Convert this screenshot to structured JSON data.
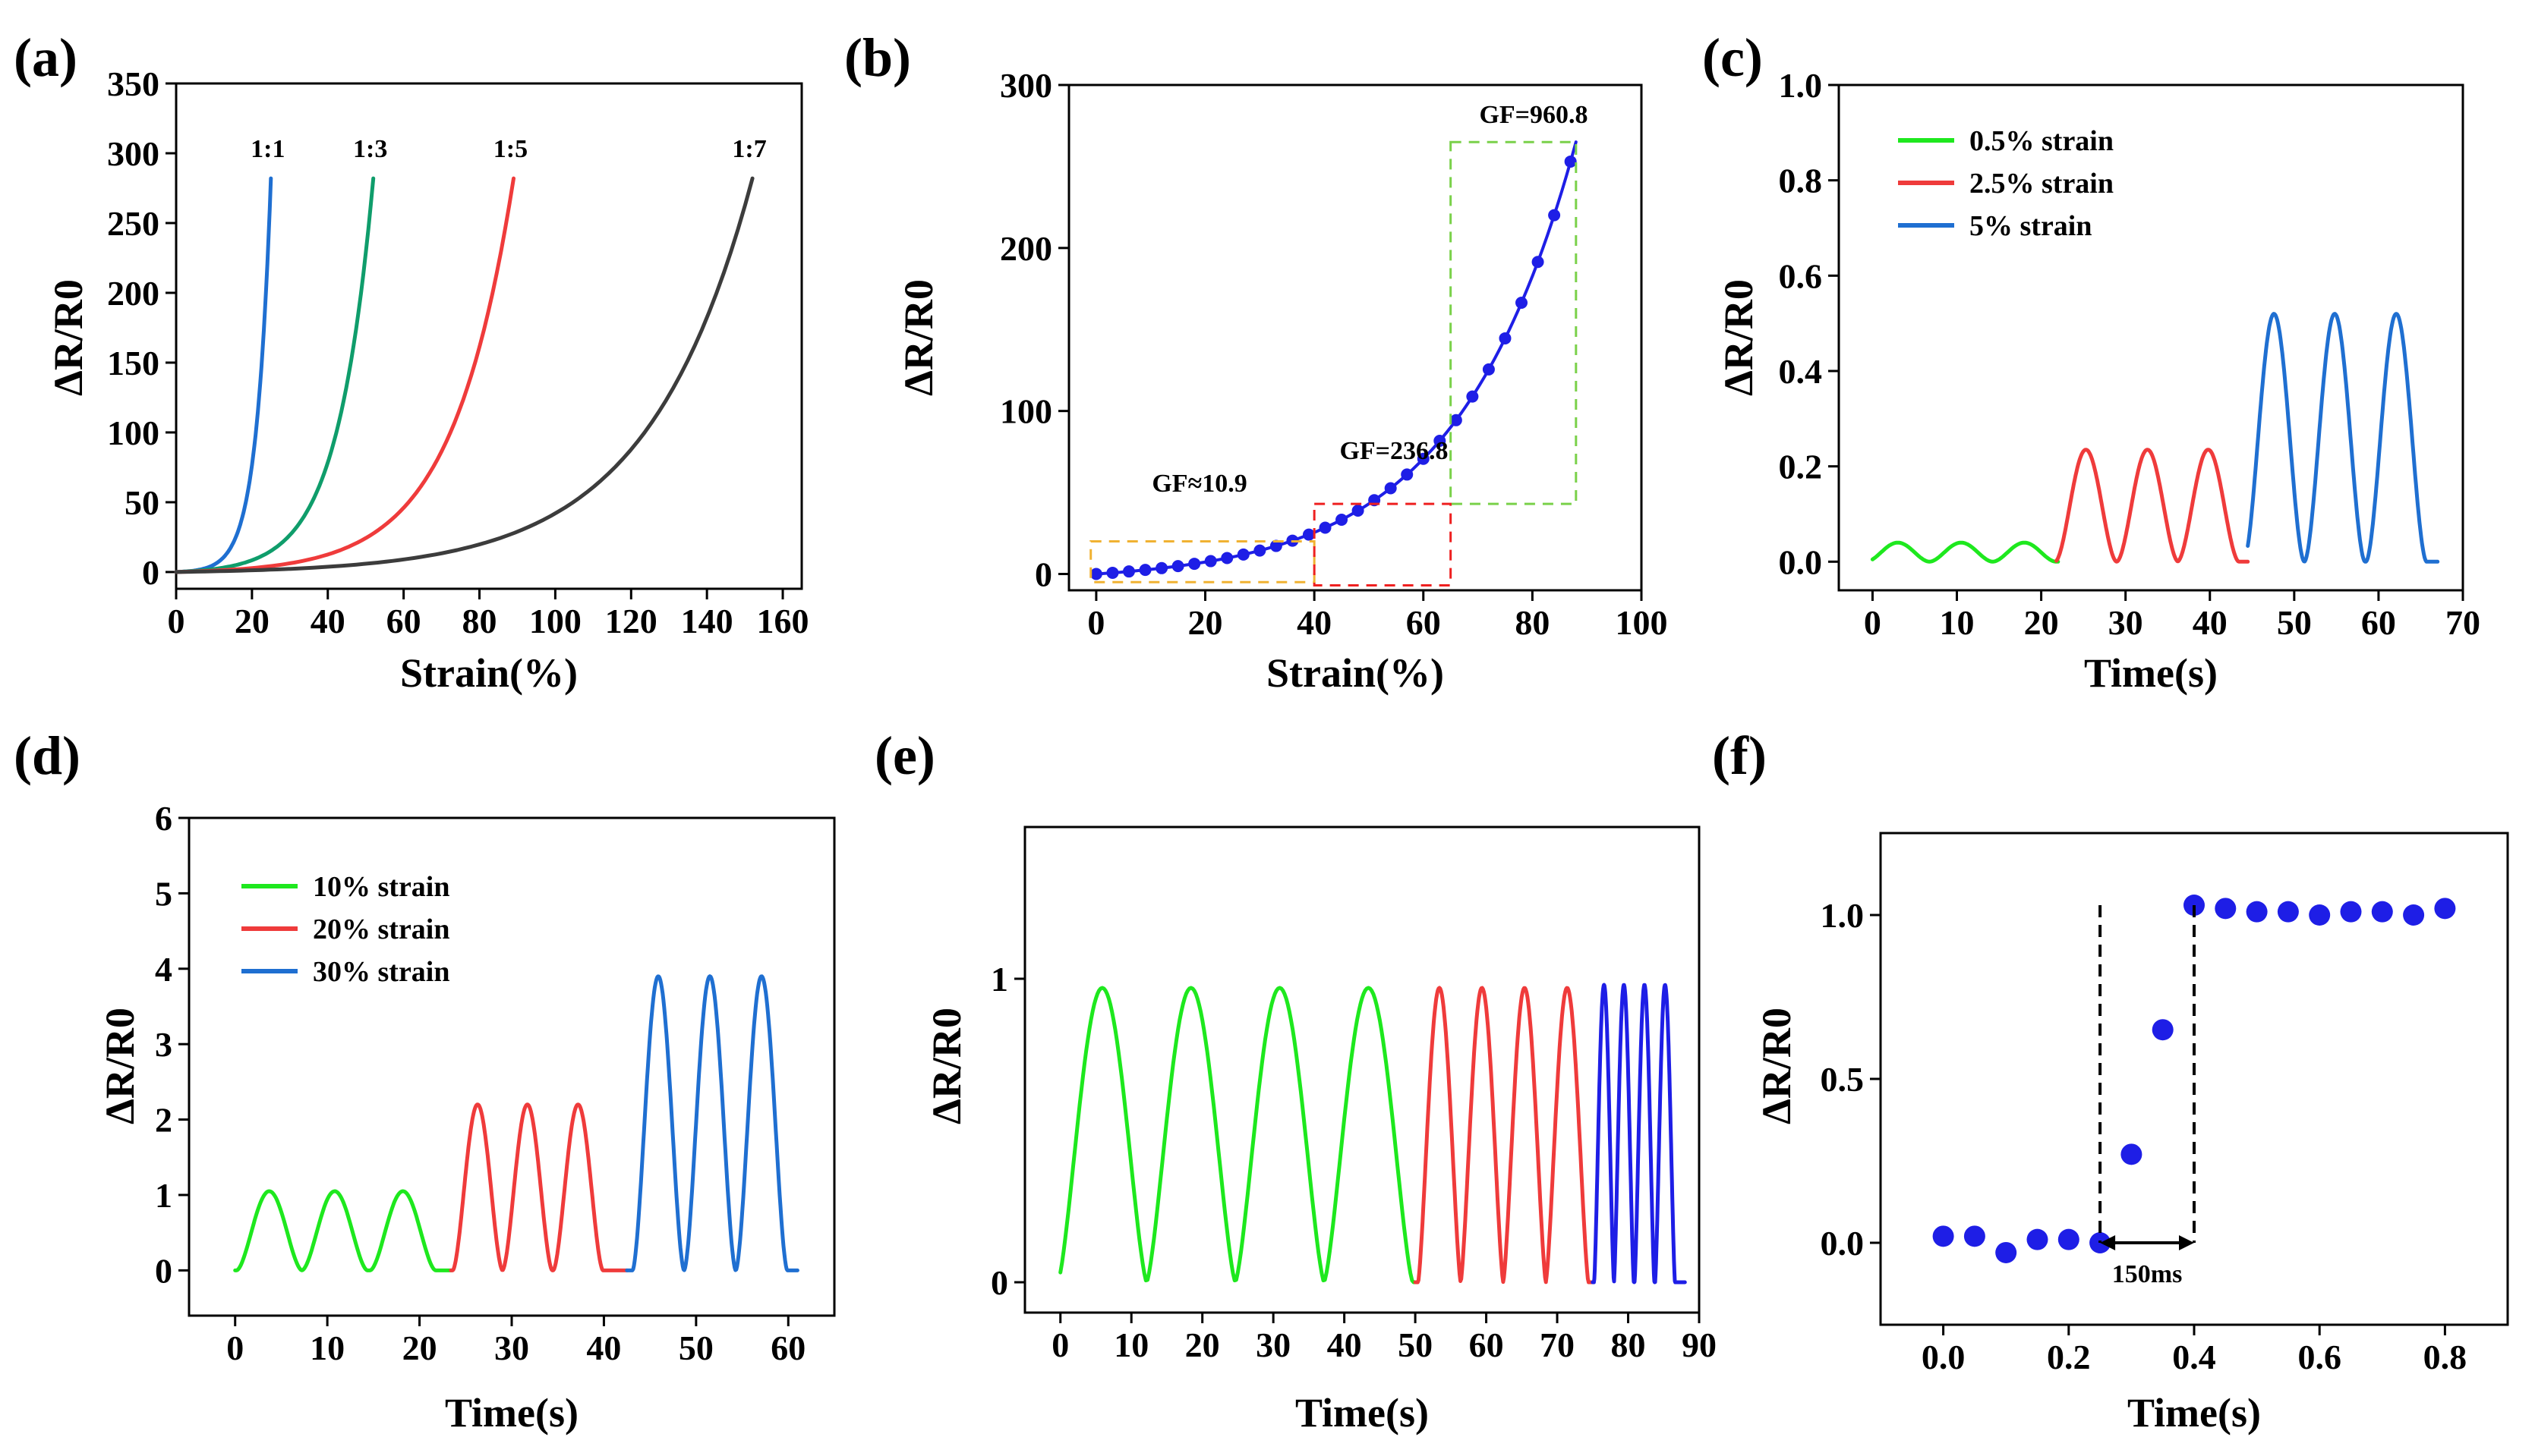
{
  "colors": {
    "black": "#000000",
    "blue": "#1f6fd1",
    "teal": "#0f9d6b",
    "red": "#ef3b3b",
    "gray": "#3c3c3c",
    "green": "#1ee81e",
    "dot_blue": "#1e1ee6",
    "orange": "#f0b232",
    "dash_red": "#ee2020",
    "dash_green": "#7ad14a"
  },
  "chart_data": [
    {
      "id": "a",
      "panel_label": "(a)",
      "type": "line",
      "xlabel": "Strain(%)",
      "ylabel": "ΔR/R0",
      "xlim": [
        0,
        165
      ],
      "ylim": [
        -12,
        350
      ],
      "xticks": [
        "0",
        "20",
        "40",
        "60",
        "80",
        "100",
        "120",
        "140",
        "160"
      ],
      "yticks": [
        "0",
        "50",
        "100",
        "150",
        "200",
        "250",
        "300",
        "350"
      ],
      "series": [
        {
          "name": "1:1",
          "color": "blue",
          "max_x": 25,
          "max_y": 282,
          "shape": 6.5
        },
        {
          "name": "1:3",
          "color": "teal",
          "max_x": 52,
          "max_y": 282,
          "shape": 5.5
        },
        {
          "name": "1:5",
          "color": "red",
          "max_x": 89,
          "max_y": 282,
          "shape": 5.5
        },
        {
          "name": "1:7",
          "color": "gray",
          "max_x": 152,
          "max_y": 282,
          "shape": 5.5
        }
      ]
    },
    {
      "id": "b",
      "panel_label": "(b)",
      "type": "scatter",
      "xlabel": "Strain(%)",
      "ylabel": "ΔR/R0",
      "xlim": [
        -5,
        100
      ],
      "ylim": [
        -10,
        300
      ],
      "xticks": [
        "0",
        "20",
        "40",
        "60",
        "80",
        "100"
      ],
      "yticks": [
        "0",
        "100",
        "200",
        "300"
      ],
      "series": [
        {
          "name": "data",
          "color": "dot_blue",
          "x_max": 88,
          "y_max": 265,
          "shape": 4.0
        }
      ],
      "annotations": [
        {
          "text": "GF≈10.9",
          "color": "orange",
          "x0": -1,
          "x1": 40,
          "y0": -5,
          "y1": 20
        },
        {
          "text": "GF=236.8",
          "color": "dash_red",
          "x0": 40,
          "x1": 65,
          "y0": -7,
          "y1": 43
        },
        {
          "text": "GF=960.8",
          "color": "dash_green",
          "x0": 65,
          "x1": 88,
          "y0": 43,
          "y1": 265
        }
      ]
    },
    {
      "id": "c",
      "panel_label": "(c)",
      "type": "line",
      "xlabel": "Time(s)",
      "ylabel": "ΔR/R0",
      "xlim": [
        -4,
        70
      ],
      "ylim": [
        -0.06,
        1.0
      ],
      "xticks": [
        "0",
        "10",
        "20",
        "30",
        "40",
        "50",
        "60",
        "70"
      ],
      "yticks": [
        "0.0",
        "0.2",
        "0.4",
        "0.6",
        "0.8",
        "1.0"
      ],
      "series": [
        {
          "name": "0.5%  strain",
          "color": "green",
          "t0": 0,
          "t1": 22,
          "peaks": [
            3,
            10.5,
            18
          ],
          "amp": 0.04
        },
        {
          "name": "2.5%  strain",
          "color": "red",
          "t0": 21.8,
          "t1": 44.5,
          "peaks": [
            25.3,
            32.6,
            39.8
          ],
          "amp": 0.235
        },
        {
          "name": " 5%    strain",
          "color": "blue",
          "t0": 44.5,
          "t1": 67,
          "peaks": [
            47.6,
            54.8,
            62.1
          ],
          "amp": 0.52
        }
      ]
    },
    {
      "id": "d",
      "panel_label": "(d)",
      "type": "line",
      "xlabel": "Time(s)",
      "ylabel": "ΔR/R0",
      "xlim": [
        -5,
        65
      ],
      "ylim": [
        -0.6,
        6
      ],
      "xticks": [
        "0",
        "10",
        "20",
        "30",
        "40",
        "50",
        "60"
      ],
      "yticks": [
        "0",
        "1",
        "2",
        "3",
        "4",
        "5",
        "6"
      ],
      "series": [
        {
          "name": "10% strain",
          "color": "green",
          "t0": 0,
          "t1": 23.4,
          "peaks": [
            3.7,
            10.8,
            18.2
          ],
          "amp": 1.05
        },
        {
          "name": "20% strain",
          "color": "red",
          "t0": 23.4,
          "t1": 42.5,
          "peaks": [
            26.3,
            31.7,
            37.2
          ],
          "amp": 2.2
        },
        {
          "name": "30% strain",
          "color": "blue",
          "t0": 42.5,
          "t1": 61,
          "peaks": [
            45.9,
            51.5,
            57.1
          ],
          "amp": 3.9
        }
      ]
    },
    {
      "id": "e",
      "panel_label": "(e)",
      "type": "line",
      "xlabel": "Time(s)",
      "ylabel": "ΔR/R0",
      "xlim": [
        -5,
        90
      ],
      "ylim": [
        -0.1,
        1.5
      ],
      "xticks": [
        "0",
        "10",
        "20",
        "30",
        "40",
        "50",
        "60",
        "70",
        "80",
        "90"
      ],
      "yticks": [
        "0",
        "1"
      ],
      "series": [
        {
          "name": "green",
          "color": "green",
          "t0": 0,
          "t1": 50,
          "peaks": [
            5.9,
            18.4,
            30.9,
            43.4
          ],
          "amp": 0.97
        },
        {
          "name": "red",
          "color": "red",
          "t0": 50,
          "t1": 75,
          "peaks": [
            53.4,
            59.4,
            65.4,
            71.4
          ],
          "amp": 0.97
        },
        {
          "name": "blue",
          "color": "dot_blue",
          "t0": 75,
          "t1": 88,
          "peaks": [
            76.6,
            79.4,
            82.3,
            85.2
          ],
          "amp": 0.98
        }
      ]
    },
    {
      "id": "f",
      "panel_label": "(f)",
      "type": "scatter",
      "xlabel": "Time(s)",
      "ylabel": "ΔR/R0",
      "xlim": [
        -0.1,
        0.9
      ],
      "ylim": [
        -0.25,
        1.25
      ],
      "xticks": [
        "0.0",
        "0.2",
        "0.4",
        "0.6",
        "0.8"
      ],
      "yticks": [
        "0.0",
        "0.5",
        "1.0"
      ],
      "series": [
        {
          "name": "data",
          "color": "dot_blue",
          "x": [
            0.0,
            0.05,
            0.1,
            0.15,
            0.2,
            0.25,
            0.3,
            0.35,
            0.4,
            0.45,
            0.5,
            0.55,
            0.6,
            0.65,
            0.7,
            0.75,
            0.8
          ],
          "y": [
            0.02,
            0.02,
            -0.03,
            0.01,
            0.01,
            0.0,
            0.27,
            0.65,
            1.03,
            1.02,
            1.01,
            1.01,
            1.0,
            1.01,
            1.01,
            1.0,
            1.02
          ]
        }
      ],
      "annotation": {
        "text": "150ms",
        "x0": 0.25,
        "x1": 0.4
      }
    }
  ]
}
